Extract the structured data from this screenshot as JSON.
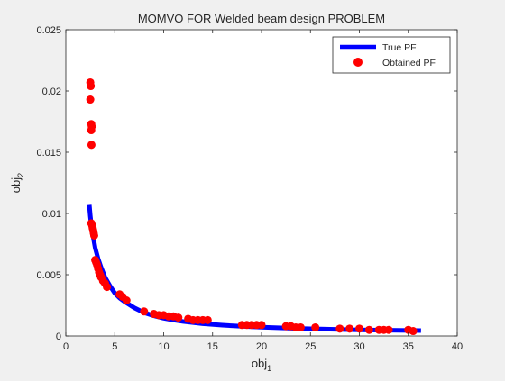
{
  "chart_data": {
    "type": "scatter",
    "title": "MOMVO FOR Welded beam design PROBLEM",
    "xlabel": {
      "base": "obj",
      "sub": "1"
    },
    "ylabel": {
      "base": "obj",
      "sub": "2"
    },
    "xlim": [
      0,
      40
    ],
    "ylim": [
      0,
      0.025
    ],
    "xticks": [
      0,
      5,
      10,
      15,
      20,
      25,
      30,
      35,
      40
    ],
    "yticks": [
      0,
      0.005,
      0.01,
      0.015,
      0.02,
      0.025
    ],
    "xtick_labels": [
      "0",
      "5",
      "10",
      "15",
      "20",
      "25",
      "30",
      "35",
      "40"
    ],
    "ytick_labels": [
      "0",
      "0.005",
      "0.01",
      "0.015",
      "0.02",
      "0.025"
    ],
    "grid": false,
    "legend_position": "top-right",
    "series": [
      {
        "name": "True PF",
        "kind": "line",
        "color": "#0000ff",
        "x": [
          2.4,
          2.5,
          2.6,
          2.75,
          3.0,
          3.3,
          3.6,
          4.0,
          4.5,
          5.0,
          5.5,
          6.0,
          7.0,
          8.0,
          9.0,
          10.0,
          11.0,
          12.0,
          14.0,
          16.0,
          18.0,
          20.0,
          22.0,
          24.0,
          26.0,
          28.0,
          30.0,
          32.0,
          34.0,
          36.3
        ],
        "y": [
          0.0107,
          0.0098,
          0.0091,
          0.0083,
          0.0072,
          0.0063,
          0.0056,
          0.0048,
          0.0041,
          0.0035,
          0.0031,
          0.0028,
          0.0023,
          0.0019,
          0.00165,
          0.00145,
          0.0013,
          0.00118,
          0.001,
          0.00088,
          0.00079,
          0.00072,
          0.00066,
          0.00061,
          0.00057,
          0.00053,
          0.0005,
          0.00048,
          0.00046,
          0.00044
        ]
      },
      {
        "name": "Obtained PF",
        "kind": "markers",
        "color": "#ff0000",
        "x": [
          2.5,
          2.55,
          2.5,
          2.6,
          2.65,
          2.6,
          2.62,
          2.6,
          2.7,
          2.75,
          2.8,
          2.85,
          2.9,
          3.0,
          3.1,
          3.2,
          3.3,
          3.4,
          3.5,
          3.6,
          3.8,
          4.0,
          4.2,
          5.5,
          5.8,
          6.2,
          8.0,
          9.0,
          9.5,
          10.0,
          10.5,
          11.0,
          11.5,
          12.5,
          13.0,
          13.5,
          14.0,
          14.5,
          18.0,
          18.5,
          19.0,
          19.5,
          20.0,
          22.5,
          23.0,
          23.5,
          24.0,
          25.5,
          28.0,
          29.0,
          30.0,
          31.0,
          32.0,
          32.5,
          33.0,
          35.0,
          35.5
        ],
        "y": [
          0.0207,
          0.0204,
          0.0193,
          0.0173,
          0.0171,
          0.0168,
          0.0156,
          0.0092,
          0.009,
          0.0088,
          0.0086,
          0.0084,
          0.0082,
          0.0062,
          0.006,
          0.0058,
          0.0055,
          0.0052,
          0.005,
          0.0048,
          0.0045,
          0.0043,
          0.004,
          0.0034,
          0.0032,
          0.0029,
          0.002,
          0.0018,
          0.0017,
          0.0017,
          0.0016,
          0.0016,
          0.0015,
          0.0014,
          0.0013,
          0.0013,
          0.0013,
          0.0013,
          0.0009,
          0.0009,
          0.0009,
          0.0009,
          0.0009,
          0.0008,
          0.0008,
          0.0007,
          0.0007,
          0.0007,
          0.0006,
          0.0006,
          0.0006,
          0.0005,
          0.0005,
          0.0005,
          0.0005,
          0.0005,
          0.0004
        ]
      }
    ]
  }
}
